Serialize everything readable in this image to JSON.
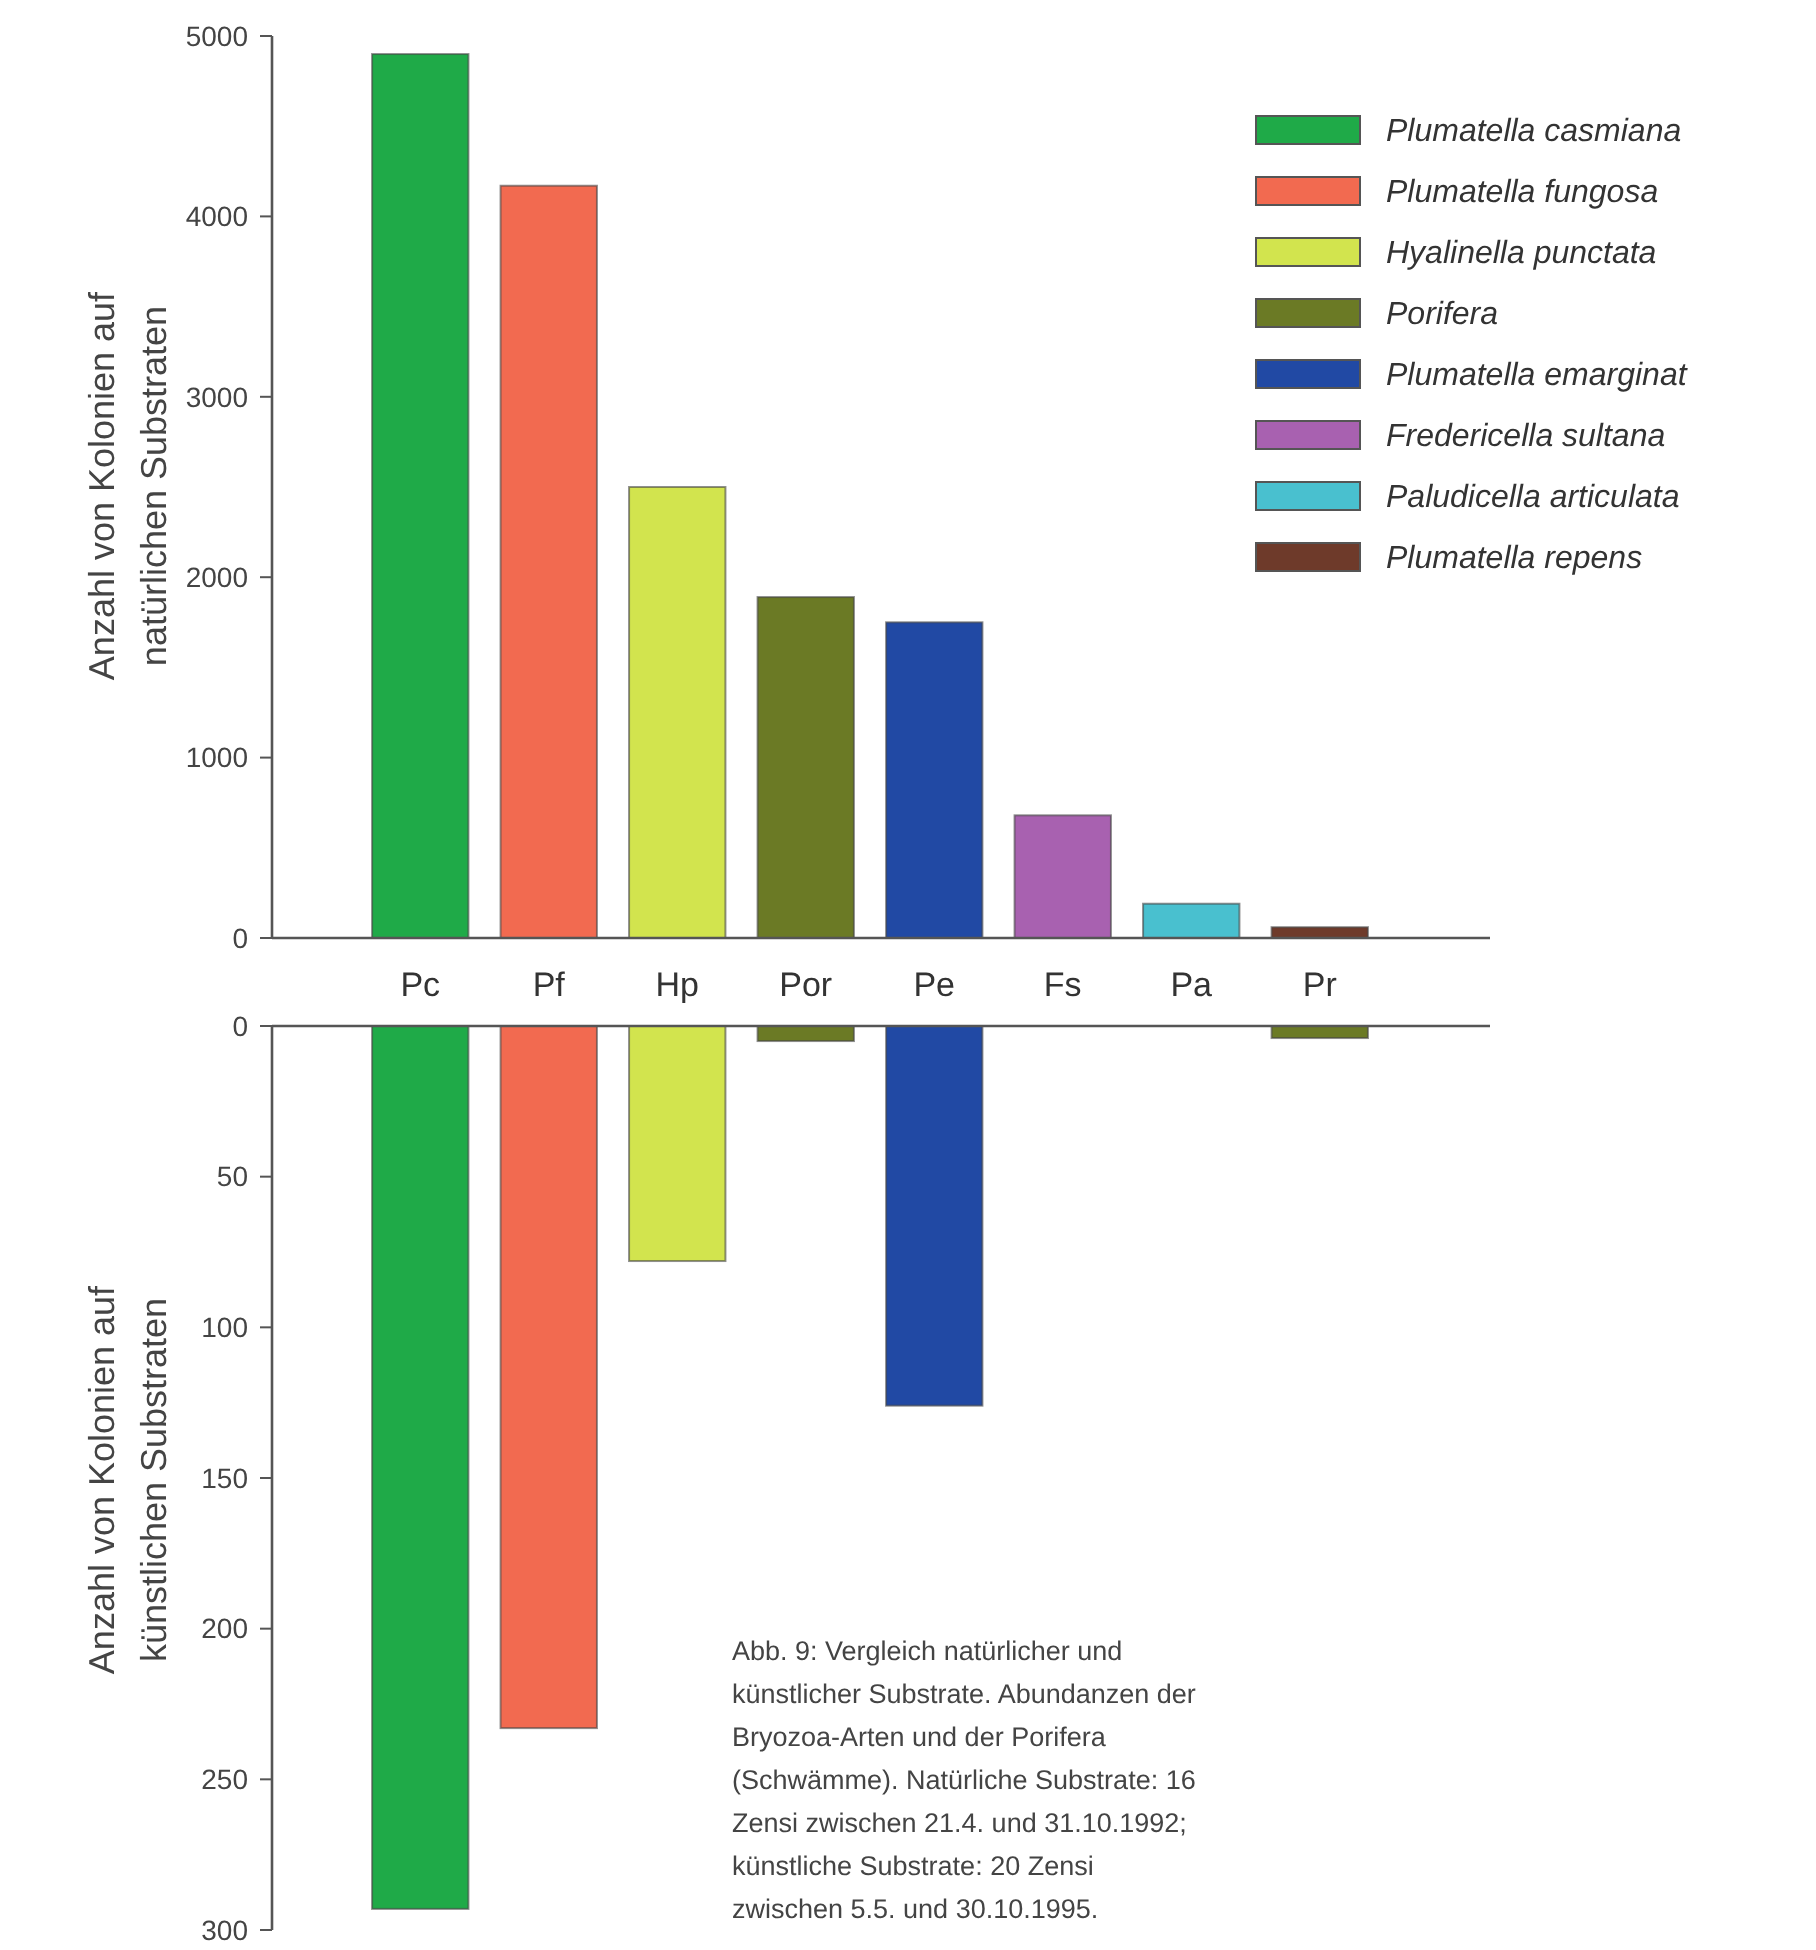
{
  "chart_data": [
    {
      "type": "bar",
      "ylabel": "Anzahl von Kolonien auf natürlichen Substraten",
      "categories": [
        "Pc",
        "Pf",
        "Hp",
        "Por",
        "Pe",
        "Fs",
        "Pa",
        "Pr"
      ],
      "stacked": true,
      "legend": "top right",
      "ylim": [
        0,
        5000
      ],
      "yticks": [
        0,
        1000,
        2000,
        3000,
        4000,
        5000
      ],
      "series": [
        {
          "name": "Plumatella casmiana",
          "color": "#1faa48",
          "values": [
            4900,
            null,
            null,
            null,
            null,
            null,
            null,
            null
          ]
        },
        {
          "name": "Plumatella fungosa",
          "color": "#f26a50",
          "values": [
            null,
            4170,
            null,
            null,
            null,
            null,
            null,
            null
          ]
        },
        {
          "name": "Hyalinella punctata",
          "color": "#d2e44e",
          "values": [
            null,
            null,
            2500,
            null,
            null,
            null,
            null,
            null
          ]
        },
        {
          "name": "Porifera",
          "color": "#6b7a25",
          "values": [
            null,
            null,
            null,
            1890,
            null,
            null,
            null,
            null
          ]
        },
        {
          "name": "Plumatella emarginat",
          "color": "#2149a4",
          "values": [
            null,
            null,
            null,
            null,
            1750,
            null,
            null,
            null
          ]
        },
        {
          "name": "Fredericella sultana",
          "color": "#a861b0",
          "values": [
            null,
            null,
            null,
            null,
            null,
            680,
            null,
            null
          ]
        },
        {
          "name": "Paludicella articulata",
          "color": "#49c0cf",
          "values": [
            null,
            null,
            null,
            null,
            null,
            null,
            190,
            null
          ]
        },
        {
          "name": "Plumatella repens",
          "color": "#6e3a2a",
          "values": [
            null,
            null,
            null,
            null,
            null,
            null,
            null,
            60
          ]
        }
      ]
    },
    {
      "type": "bar",
      "ylabel": "Anzahl von Kolonien auf künstlichen Substraten",
      "categories": [
        null,
        null,
        null,
        null,
        null,
        null,
        null,
        null
      ],
      "stacked": true,
      "ylim": [
        300,
        0
      ],
      "yticks": [
        0,
        50,
        100,
        150,
        200,
        250,
        300
      ],
      "annotations": [
        "Abb. 9: Vergleich natürlicher und künstlicher Substrate. Abundanzen der Bryozoa-Arten und der Porifera (Schwämme). Natürliche Substrate: 16 Zensi zwischen 21.4. und 31.10.1992; künstliche Substrate: 20 Zensi zwischen 5.5. und 30.10.1995."
      ],
      "series": [
        {
          "color": "#1faa48",
          "values": [
            293,
            null,
            null,
            null,
            null,
            null,
            null,
            null
          ]
        },
        {
          "color": "#f26a50",
          "values": [
            null,
            233,
            null,
            null,
            null,
            null,
            null,
            null
          ]
        },
        {
          "color": "#d2e44e",
          "values": [
            null,
            null,
            78,
            null,
            null,
            null,
            null,
            null
          ]
        },
        {
          "color": "#6b7a25",
          "values": [
            null,
            null,
            null,
            5,
            null,
            null,
            null,
            null
          ]
        },
        {
          "color": "#2149a4",
          "values": [
            null,
            null,
            null,
            null,
            126,
            null,
            null,
            null
          ]
        },
        {
          "color": "#a861b0",
          "values": [
            null,
            null,
            null,
            null,
            null,
            0,
            null,
            null
          ]
        },
        {
          "color": "#49c0cf",
          "values": [
            null,
            null,
            null,
            null,
            null,
            null,
            0,
            null
          ]
        },
        {
          "color": "#6b7a25",
          "values": [
            null,
            null,
            null,
            null,
            null,
            null,
            null,
            4
          ]
        }
      ]
    }
  ]
}
